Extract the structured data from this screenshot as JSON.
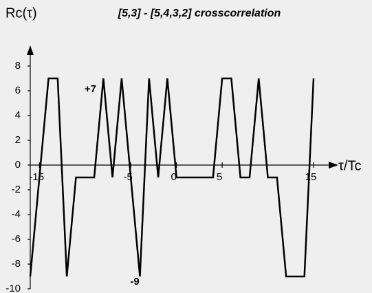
{
  "chart_data": {
    "type": "line",
    "title": "[5,3] - [5,4,3,2] crosscorrelation",
    "y_label": "Rc(τ)",
    "x_label": "τ/Tc",
    "annotations": [
      "+7",
      "-9"
    ],
    "x": [
      -16,
      -15,
      -14,
      -13,
      -12,
      -11,
      -10,
      -9,
      -8,
      -7,
      -6,
      -5,
      -4,
      -3,
      -2,
      -1,
      0,
      1,
      2,
      3,
      4,
      5,
      6,
      7,
      8,
      9,
      10,
      11,
      12,
      13,
      14,
      15
    ],
    "series": [
      {
        "name": "Rc",
        "color": "#000000",
        "values": [
          -9,
          -1,
          7,
          7,
          -9,
          -1,
          -1,
          -1,
          7,
          -1,
          7,
          -1,
          -9,
          7,
          -1,
          7,
          -1,
          -1,
          -1,
          -1,
          -1,
          7,
          7,
          -1,
          -1,
          7,
          -1,
          -1,
          -9,
          -9,
          -9,
          7
        ]
      }
    ],
    "xlim": [
      -16,
      15
    ],
    "xticks": [
      -15,
      -5,
      0,
      5,
      15
    ],
    "ylim": [
      -10,
      8
    ],
    "yticks": [
      -10,
      -8,
      -6,
      -4,
      -2,
      0,
      2,
      4,
      6,
      8
    ],
    "grid": false
  }
}
